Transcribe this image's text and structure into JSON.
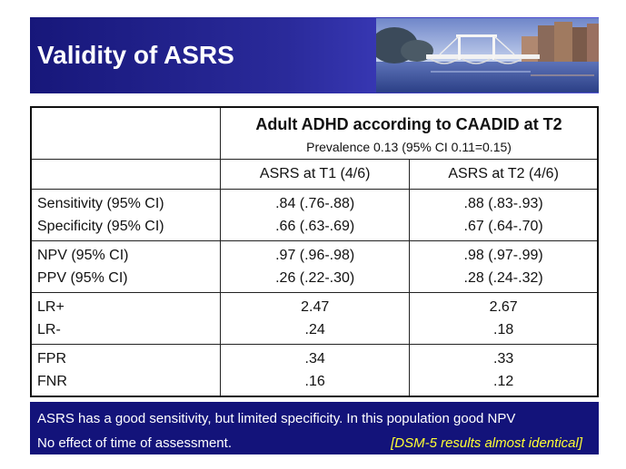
{
  "slide": {
    "title": "Validity of ASRS",
    "photo_alt": "canal bridge photo"
  },
  "table": {
    "header_main": "Adult ADHD according to CAADID at T2",
    "header_sub": "Prevalence 0.13 (95% CI 0.11=0.15)",
    "col1": "ASRS at T1 (4/6)",
    "col2": "ASRS at T2 (4/6)",
    "groups": [
      {
        "labels": [
          "Sensitivity (95% CI)",
          "Specificity (95% CI)"
        ],
        "t1": [
          ".84 (.76-.88)",
          ".66 (.63-.69)"
        ],
        "t2": [
          ".88 (.83-.93)",
          ".67 (.64-.70)"
        ]
      },
      {
        "labels": [
          "NPV (95% CI)",
          "PPV (95% CI)"
        ],
        "t1": [
          ".97 (.96-.98)",
          ".26 (.22-.30)"
        ],
        "t2": [
          ".98 (.97-.99)",
          ".28 (.24-.32)"
        ]
      },
      {
        "labels": [
          "LR+",
          "LR-"
        ],
        "t1": [
          "2.47",
          ".24"
        ],
        "t2": [
          "2.67",
          ".18"
        ]
      },
      {
        "labels": [
          "FPR",
          "FNR"
        ],
        "t1": [
          ".34",
          ".16"
        ],
        "t2": [
          ".33",
          ".12"
        ]
      }
    ]
  },
  "footer": {
    "line1": "ASRS has a good sensitivity, but limited specificity. In this population good NPV",
    "line2": "No effect of time of assessment.",
    "note": "[DSM-5 results almost identical]"
  },
  "colors": {
    "title_bar": "#2a2a9a",
    "footer_bg": "#13137a",
    "note_text": "#ffff33"
  }
}
